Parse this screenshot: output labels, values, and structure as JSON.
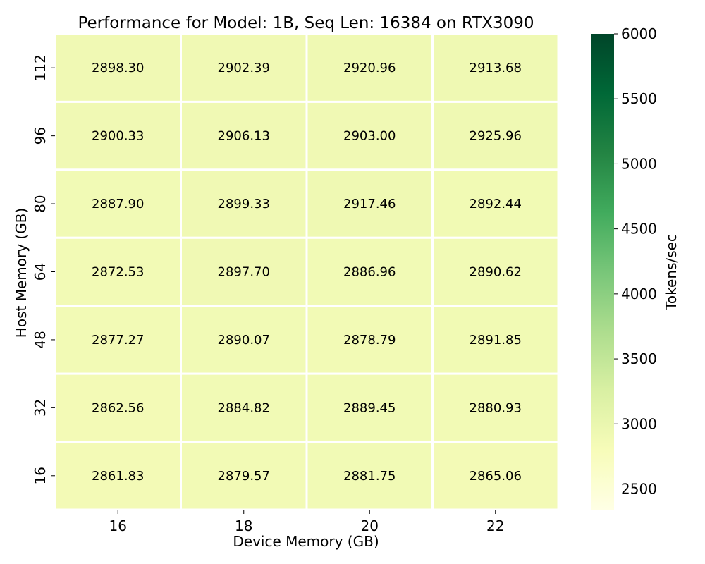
{
  "chart_data": {
    "type": "heatmap",
    "title": "Performance for Model: 1B, Seq Len: 16384 on RTX3090",
    "xlabel": "Device Memory (GB)",
    "ylabel": "Host Memory (GB)",
    "x_categories": [
      "16",
      "18",
      "20",
      "22"
    ],
    "y_categories": [
      "112",
      "96",
      "80",
      "64",
      "48",
      "32",
      "16"
    ],
    "values": [
      [
        2898.3,
        2902.39,
        2920.96,
        2913.68
      ],
      [
        2900.33,
        2906.13,
        2903.0,
        2925.96
      ],
      [
        2887.9,
        2899.33,
        2917.46,
        2892.44
      ],
      [
        2872.53,
        2897.7,
        2886.96,
        2890.62
      ],
      [
        2877.27,
        2890.07,
        2878.79,
        2891.85
      ],
      [
        2862.56,
        2884.82,
        2889.45,
        2880.93
      ],
      [
        2861.83,
        2879.57,
        2881.75,
        2865.06
      ]
    ],
    "value_format": "2 decimals",
    "colorbar": {
      "label": "Tokens/sec",
      "range": [
        2340,
        6000
      ],
      "ticks": [
        "2500",
        "3000",
        "3500",
        "4000",
        "4500",
        "5000",
        "5500",
        "6000"
      ],
      "colormap": "YlGn",
      "stops": [
        "#ffffe5",
        "#f7fcb9",
        "#d9f0a3",
        "#addd8e",
        "#78c679",
        "#41ab5d",
        "#238443",
        "#006837",
        "#004529"
      ]
    }
  }
}
